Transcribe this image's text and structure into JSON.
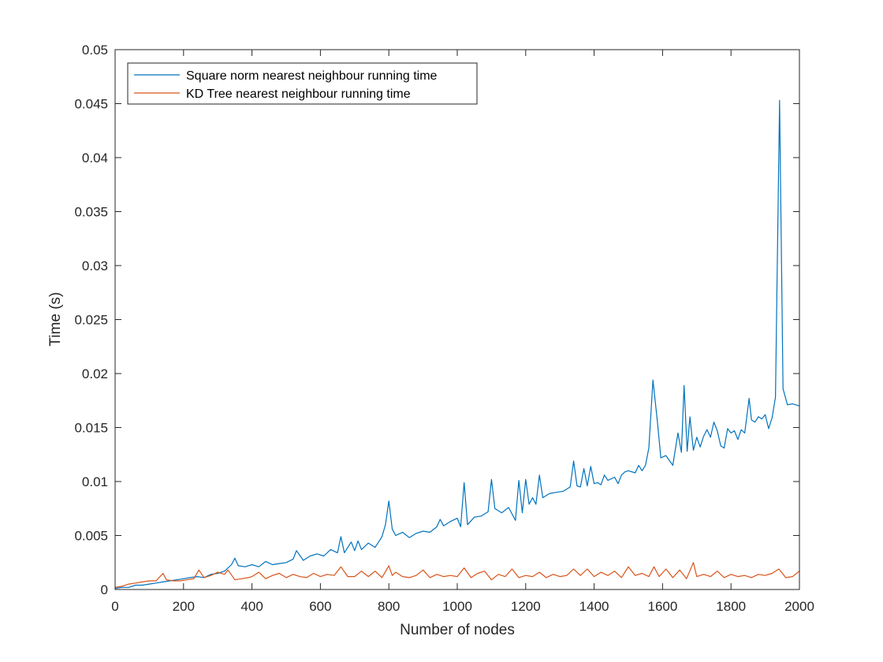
{
  "chart_data": {
    "type": "line",
    "title": "",
    "xlabel": "Number of nodes",
    "ylabel": "Time (s)",
    "xlim": [
      0,
      2000
    ],
    "ylim": [
      0,
      0.05
    ],
    "xticks": [
      0,
      200,
      400,
      600,
      800,
      1000,
      1200,
      1400,
      1600,
      1800,
      2000
    ],
    "xtick_labels": [
      "0",
      "200",
      "400",
      "600",
      "800",
      "1000",
      "1200",
      "1400",
      "1600",
      "1800",
      "2000"
    ],
    "yticks": [
      0,
      0.005,
      0.01,
      0.015,
      0.02,
      0.025,
      0.03,
      0.035,
      0.04,
      0.045,
      0.05
    ],
    "ytick_labels": [
      "0",
      "0.005",
      "0.01",
      "0.015",
      "0.02",
      "0.025",
      "0.03",
      "0.035",
      "0.04",
      "0.045",
      "0.05"
    ],
    "grid": false,
    "box": true,
    "legend_position": "top-left",
    "series": [
      {
        "name": "Square norm nearest neighbour running time",
        "color": "#0072BD",
        "points": [
          [
            0,
            0.0001
          ],
          [
            20,
            0.0002
          ],
          [
            40,
            0.0002
          ],
          [
            60,
            0.0004
          ],
          [
            80,
            0.0004
          ],
          [
            100,
            0.0005
          ],
          [
            120,
            0.0006
          ],
          [
            140,
            0.0007
          ],
          [
            160,
            0.0008
          ],
          [
            180,
            0.0009
          ],
          [
            200,
            0.001
          ],
          [
            220,
            0.0011
          ],
          [
            240,
            0.0012
          ],
          [
            260,
            0.0011
          ],
          [
            280,
            0.0014
          ],
          [
            300,
            0.0015
          ],
          [
            320,
            0.0017
          ],
          [
            340,
            0.0023
          ],
          [
            350,
            0.0029
          ],
          [
            360,
            0.0022
          ],
          [
            380,
            0.0021
          ],
          [
            400,
            0.0023
          ],
          [
            420,
            0.0021
          ],
          [
            440,
            0.0026
          ],
          [
            460,
            0.0023
          ],
          [
            480,
            0.0024
          ],
          [
            500,
            0.0025
          ],
          [
            520,
            0.0028
          ],
          [
            530,
            0.0036
          ],
          [
            550,
            0.0027
          ],
          [
            570,
            0.0031
          ],
          [
            590,
            0.0033
          ],
          [
            610,
            0.0031
          ],
          [
            630,
            0.0037
          ],
          [
            650,
            0.0034
          ],
          [
            660,
            0.0049
          ],
          [
            670,
            0.0034
          ],
          [
            690,
            0.0044
          ],
          [
            700,
            0.0036
          ],
          [
            710,
            0.0045
          ],
          [
            720,
            0.0037
          ],
          [
            740,
            0.0043
          ],
          [
            760,
            0.0039
          ],
          [
            780,
            0.0049
          ],
          [
            790,
            0.006
          ],
          [
            800,
            0.0082
          ],
          [
            810,
            0.0056
          ],
          [
            820,
            0.005
          ],
          [
            840,
            0.0053
          ],
          [
            860,
            0.0048
          ],
          [
            880,
            0.0052
          ],
          [
            900,
            0.0054
          ],
          [
            920,
            0.0053
          ],
          [
            940,
            0.0058
          ],
          [
            950,
            0.0065
          ],
          [
            960,
            0.0059
          ],
          [
            980,
            0.0063
          ],
          [
            1000,
            0.0066
          ],
          [
            1010,
            0.0058
          ],
          [
            1020,
            0.0099
          ],
          [
            1030,
            0.006
          ],
          [
            1050,
            0.0067
          ],
          [
            1070,
            0.0068
          ],
          [
            1090,
            0.0072
          ],
          [
            1100,
            0.0102
          ],
          [
            1110,
            0.0075
          ],
          [
            1130,
            0.0071
          ],
          [
            1150,
            0.0076
          ],
          [
            1170,
            0.0064
          ],
          [
            1180,
            0.0101
          ],
          [
            1190,
            0.0071
          ],
          [
            1200,
            0.0102
          ],
          [
            1210,
            0.0079
          ],
          [
            1220,
            0.0085
          ],
          [
            1230,
            0.0079
          ],
          [
            1240,
            0.0106
          ],
          [
            1250,
            0.0085
          ],
          [
            1270,
            0.0089
          ],
          [
            1290,
            0.009
          ],
          [
            1310,
            0.0091
          ],
          [
            1330,
            0.0095
          ],
          [
            1340,
            0.0119
          ],
          [
            1350,
            0.0096
          ],
          [
            1360,
            0.0095
          ],
          [
            1370,
            0.0112
          ],
          [
            1380,
            0.0096
          ],
          [
            1390,
            0.0114
          ],
          [
            1400,
            0.0098
          ],
          [
            1410,
            0.0099
          ],
          [
            1420,
            0.0097
          ],
          [
            1430,
            0.0106
          ],
          [
            1440,
            0.0101
          ],
          [
            1460,
            0.0104
          ],
          [
            1470,
            0.0098
          ],
          [
            1480,
            0.0106
          ],
          [
            1490,
            0.0109
          ],
          [
            1500,
            0.011
          ],
          [
            1520,
            0.0108
          ],
          [
            1530,
            0.0115
          ],
          [
            1540,
            0.011
          ],
          [
            1550,
            0.0115
          ],
          [
            1560,
            0.0131
          ],
          [
            1572,
            0.0194
          ],
          [
            1585,
            0.0155
          ],
          [
            1595,
            0.0122
          ],
          [
            1610,
            0.0124
          ],
          [
            1630,
            0.0115
          ],
          [
            1645,
            0.0145
          ],
          [
            1655,
            0.0127
          ],
          [
            1663,
            0.0189
          ],
          [
            1672,
            0.0128
          ],
          [
            1680,
            0.016
          ],
          [
            1690,
            0.0129
          ],
          [
            1700,
            0.0141
          ],
          [
            1710,
            0.0132
          ],
          [
            1720,
            0.0142
          ],
          [
            1730,
            0.0148
          ],
          [
            1740,
            0.0141
          ],
          [
            1750,
            0.0155
          ],
          [
            1760,
            0.0147
          ],
          [
            1770,
            0.0133
          ],
          [
            1780,
            0.0131
          ],
          [
            1790,
            0.0149
          ],
          [
            1800,
            0.0145
          ],
          [
            1810,
            0.0147
          ],
          [
            1820,
            0.0139
          ],
          [
            1830,
            0.0148
          ],
          [
            1840,
            0.0145
          ],
          [
            1853,
            0.0177
          ],
          [
            1860,
            0.0157
          ],
          [
            1870,
            0.0155
          ],
          [
            1880,
            0.016
          ],
          [
            1890,
            0.0158
          ],
          [
            1900,
            0.0162
          ],
          [
            1910,
            0.0149
          ],
          [
            1920,
            0.0159
          ],
          [
            1930,
            0.0178
          ],
          [
            1942,
            0.0453
          ],
          [
            1952,
            0.0186
          ],
          [
            1965,
            0.0171
          ],
          [
            1980,
            0.0172
          ],
          [
            2000,
            0.017
          ]
        ]
      },
      {
        "name": "KD Tree nearest neighbour running time",
        "color": "#D95319",
        "points": [
          [
            0,
            0.0002
          ],
          [
            20,
            0.0003
          ],
          [
            40,
            0.0005
          ],
          [
            60,
            0.0006
          ],
          [
            80,
            0.0007
          ],
          [
            100,
            0.0008
          ],
          [
            120,
            0.0008
          ],
          [
            140,
            0.0015
          ],
          [
            150,
            0.0009
          ],
          [
            170,
            0.0008
          ],
          [
            190,
            0.0008
          ],
          [
            210,
            0.0009
          ],
          [
            230,
            0.001
          ],
          [
            245,
            0.0018
          ],
          [
            260,
            0.0011
          ],
          [
            280,
            0.0013
          ],
          [
            300,
            0.0016
          ],
          [
            320,
            0.0014
          ],
          [
            330,
            0.0018
          ],
          [
            350,
            0.0009
          ],
          [
            370,
            0.001
          ],
          [
            390,
            0.0011
          ],
          [
            400,
            0.0012
          ],
          [
            420,
            0.0016
          ],
          [
            440,
            0.001
          ],
          [
            460,
            0.0013
          ],
          [
            480,
            0.0015
          ],
          [
            500,
            0.0011
          ],
          [
            520,
            0.0014
          ],
          [
            540,
            0.0012
          ],
          [
            560,
            0.0011
          ],
          [
            580,
            0.0015
          ],
          [
            600,
            0.0012
          ],
          [
            620,
            0.0014
          ],
          [
            640,
            0.0013
          ],
          [
            660,
            0.0021
          ],
          [
            680,
            0.0012
          ],
          [
            700,
            0.0012
          ],
          [
            720,
            0.0017
          ],
          [
            740,
            0.0012
          ],
          [
            760,
            0.0017
          ],
          [
            780,
            0.0011
          ],
          [
            800,
            0.0022
          ],
          [
            810,
            0.0013
          ],
          [
            820,
            0.0016
          ],
          [
            840,
            0.0012
          ],
          [
            860,
            0.0011
          ],
          [
            880,
            0.0013
          ],
          [
            900,
            0.0018
          ],
          [
            920,
            0.0011
          ],
          [
            940,
            0.0014
          ],
          [
            960,
            0.0012
          ],
          [
            980,
            0.0013
          ],
          [
            1000,
            0.0012
          ],
          [
            1020,
            0.002
          ],
          [
            1040,
            0.0011
          ],
          [
            1060,
            0.0015
          ],
          [
            1080,
            0.0017
          ],
          [
            1100,
            0.0009
          ],
          [
            1120,
            0.0014
          ],
          [
            1140,
            0.0012
          ],
          [
            1160,
            0.0019
          ],
          [
            1180,
            0.0011
          ],
          [
            1200,
            0.0013
          ],
          [
            1220,
            0.0012
          ],
          [
            1240,
            0.0016
          ],
          [
            1260,
            0.0011
          ],
          [
            1280,
            0.0014
          ],
          [
            1300,
            0.0012
          ],
          [
            1320,
            0.0013
          ],
          [
            1340,
            0.0019
          ],
          [
            1360,
            0.0013
          ],
          [
            1380,
            0.0019
          ],
          [
            1400,
            0.0012
          ],
          [
            1420,
            0.0016
          ],
          [
            1440,
            0.0013
          ],
          [
            1460,
            0.0017
          ],
          [
            1480,
            0.0011
          ],
          [
            1500,
            0.0021
          ],
          [
            1520,
            0.0013
          ],
          [
            1540,
            0.0015
          ],
          [
            1560,
            0.0012
          ],
          [
            1575,
            0.0021
          ],
          [
            1590,
            0.0012
          ],
          [
            1610,
            0.0019
          ],
          [
            1630,
            0.0011
          ],
          [
            1650,
            0.0018
          ],
          [
            1670,
            0.001
          ],
          [
            1690,
            0.0025
          ],
          [
            1700,
            0.0012
          ],
          [
            1720,
            0.0014
          ],
          [
            1740,
            0.0012
          ],
          [
            1760,
            0.0017
          ],
          [
            1780,
            0.0011
          ],
          [
            1800,
            0.0014
          ],
          [
            1820,
            0.0012
          ],
          [
            1840,
            0.0013
          ],
          [
            1860,
            0.0011
          ],
          [
            1880,
            0.0014
          ],
          [
            1900,
            0.0013
          ],
          [
            1920,
            0.0015
          ],
          [
            1940,
            0.0019
          ],
          [
            1960,
            0.0011
          ],
          [
            1980,
            0.0012
          ],
          [
            2000,
            0.0017
          ]
        ]
      }
    ]
  }
}
